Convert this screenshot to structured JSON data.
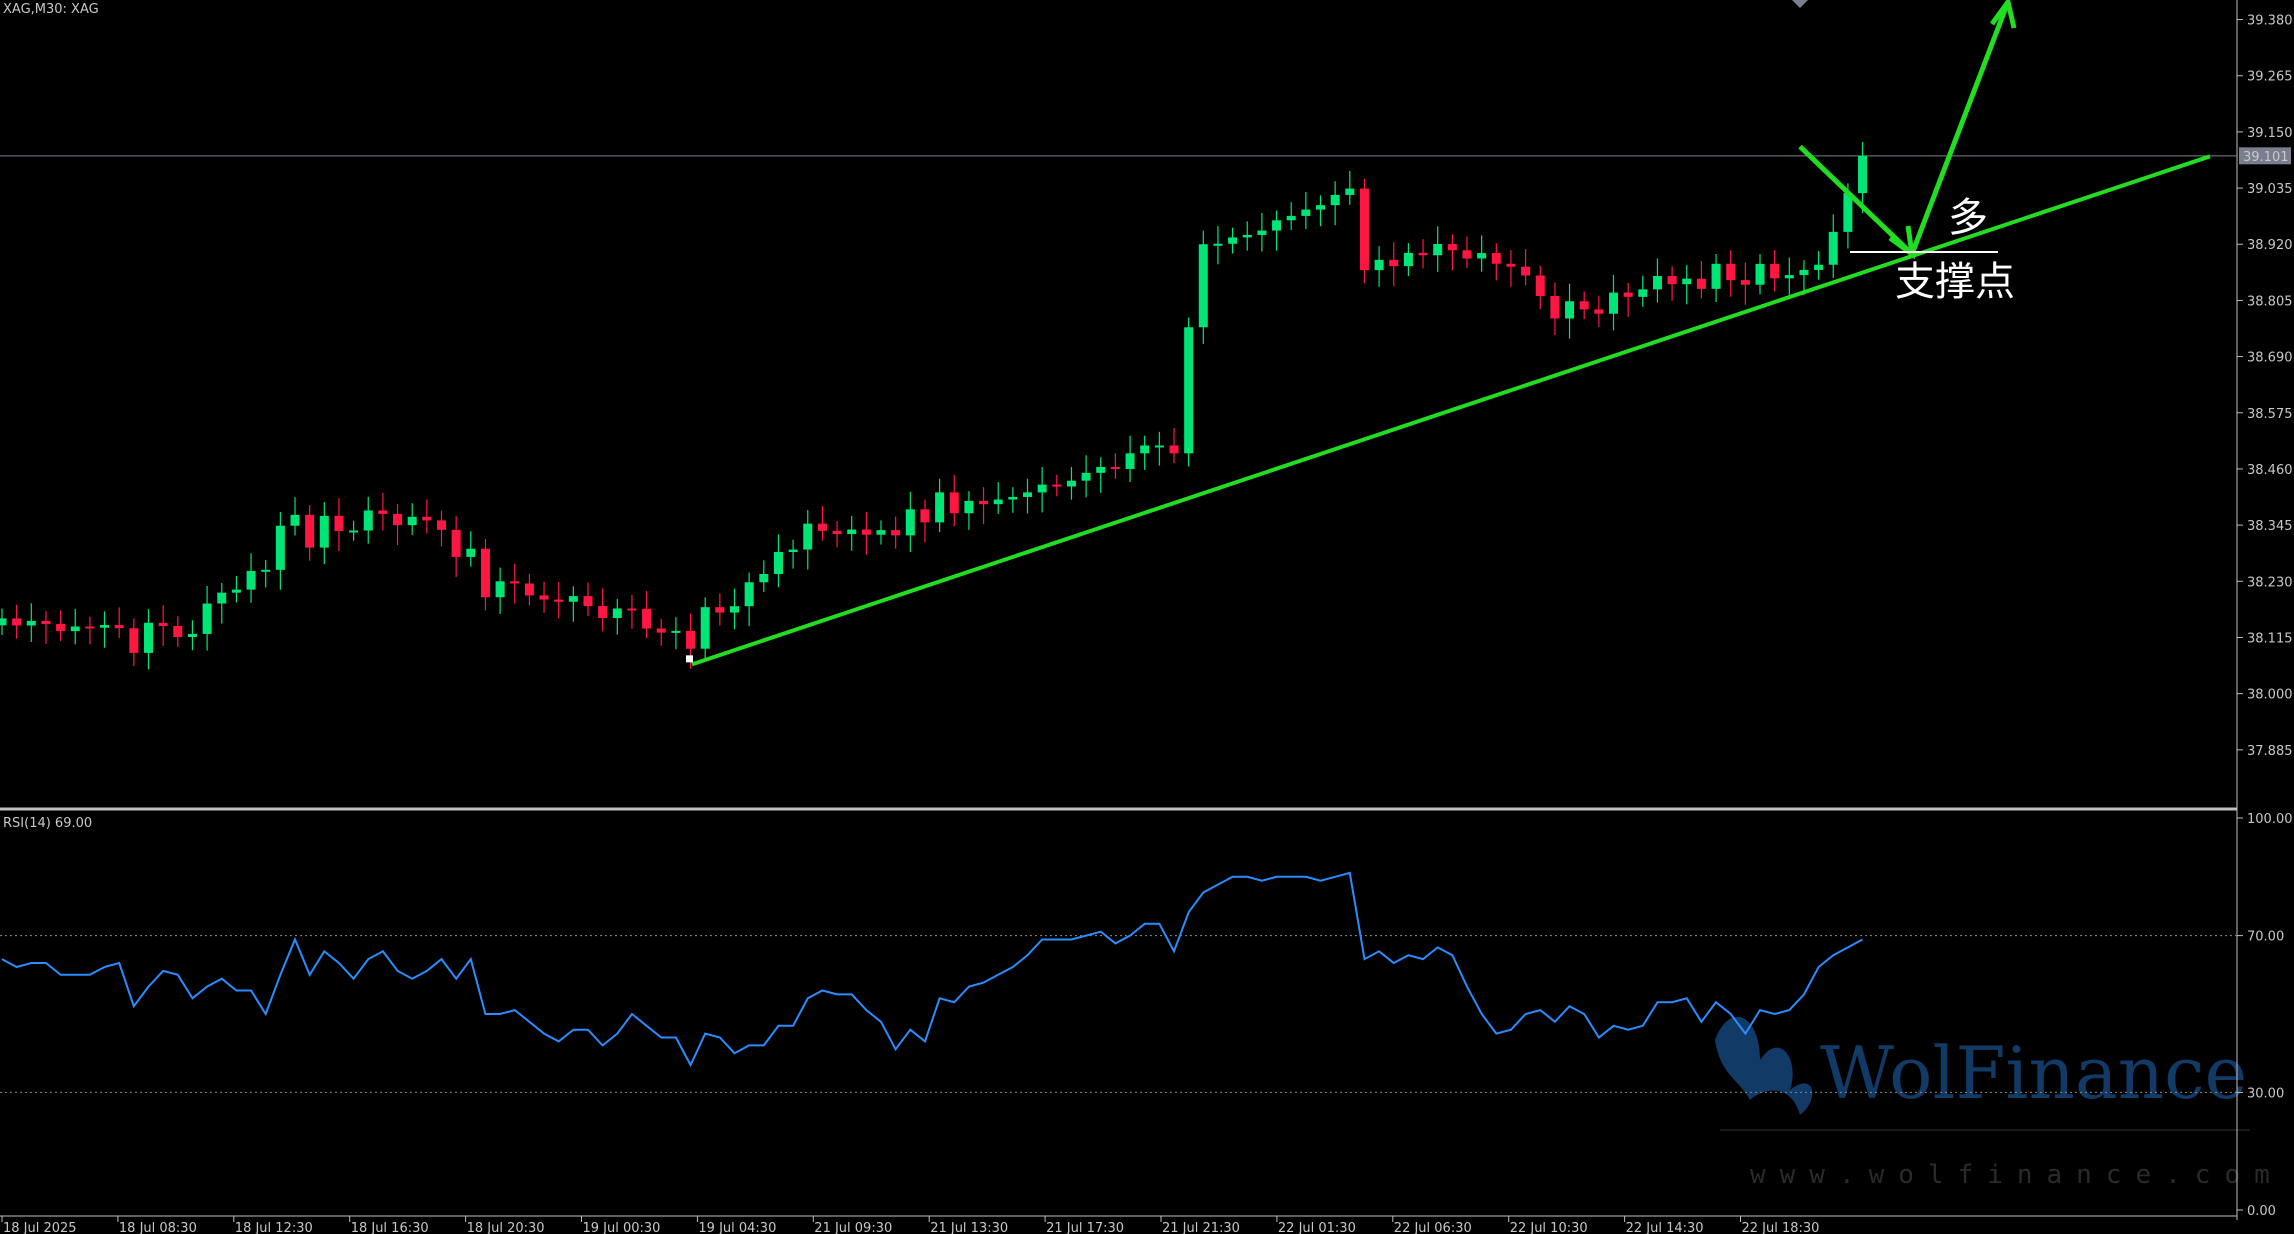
{
  "symbol_label": "XAG,M30:  XAG",
  "rsi_label": "RSI(14) 69.00",
  "colors": {
    "background": "#000000",
    "bull": "#00e676",
    "bear": "#ff1744",
    "trendline": "#22dd22",
    "rsi_line": "#2a8cff",
    "grid_level": "#7a7f8f",
    "watermark": "#123a66"
  },
  "annotations": {
    "bullish": "多",
    "support": "支撑点"
  },
  "watermark": {
    "brand": "WolFinance",
    "url": "www.wolfinance.com"
  },
  "chart_data": [
    {
      "type": "candlestick",
      "ylim": [
        37.77,
        39.42
      ],
      "y_ticks": [
        "39.380",
        "39.265",
        "39.150",
        "39.035",
        "38.920",
        "38.805",
        "38.690",
        "38.575",
        "38.460",
        "38.345",
        "38.230",
        "38.115",
        "38.000",
        "37.885"
      ],
      "current_price": "39.101",
      "x_ticks": [
        "18 Jul 2025",
        "18 Jul 08:30",
        "18 Jul 12:30",
        "18 Jul 16:30",
        "18 Jul 20:30",
        "19 Jul 00:30",
        "19 Jul 04:30",
        "21 Jul 09:30",
        "21 Jul 13:30",
        "21 Jul 17:30",
        "21 Jul 21:30",
        "22 Jul 01:30",
        "22 Jul 06:30",
        "22 Jul 10:30",
        "22 Jul 14:30",
        "22 Jul 18:30"
      ],
      "trendline": {
        "from": [
          38.06,
          38.06
        ],
        "to": [
          39.1,
          39.1
        ]
      },
      "projection_arrow": {
        "start": 39.12,
        "pivot": 38.9,
        "end": 39.42
      }
    },
    {
      "type": "line",
      "title": "RSI(14) 69.00",
      "ylim": [
        0,
        100
      ],
      "y_ticks": [
        "100.00",
        "70.00",
        "30.00",
        "0.00"
      ],
      "levels": [
        70,
        30
      ],
      "values": [
        64,
        62,
        63,
        63,
        60,
        60,
        60,
        62,
        63,
        52,
        57,
        61,
        60,
        54,
        57,
        59,
        56,
        56,
        50,
        60,
        69,
        60,
        66,
        63,
        59,
        64,
        66,
        61,
        59,
        61,
        64,
        59,
        64,
        50,
        50,
        51,
        48,
        45,
        43,
        46,
        46,
        42,
        45,
        50,
        47,
        44,
        44,
        37,
        45,
        44,
        40,
        42,
        42,
        47,
        47,
        54,
        56,
        55,
        55,
        51,
        48,
        41,
        46,
        43,
        54,
        53,
        57,
        58,
        60,
        62,
        65,
        69,
        69,
        69,
        70,
        71,
        68,
        70,
        73,
        73,
        66,
        76,
        81,
        83,
        85,
        85,
        84,
        85,
        85,
        85,
        84,
        85,
        86,
        64,
        66,
        63,
        65,
        64,
        67,
        65,
        57,
        50,
        45,
        46,
        50,
        51,
        48,
        52,
        50,
        44,
        47,
        46,
        47,
        53,
        53,
        54,
        48,
        53,
        50,
        45,
        51,
        50,
        51,
        55,
        62,
        65,
        67,
        69
      ]
    }
  ]
}
